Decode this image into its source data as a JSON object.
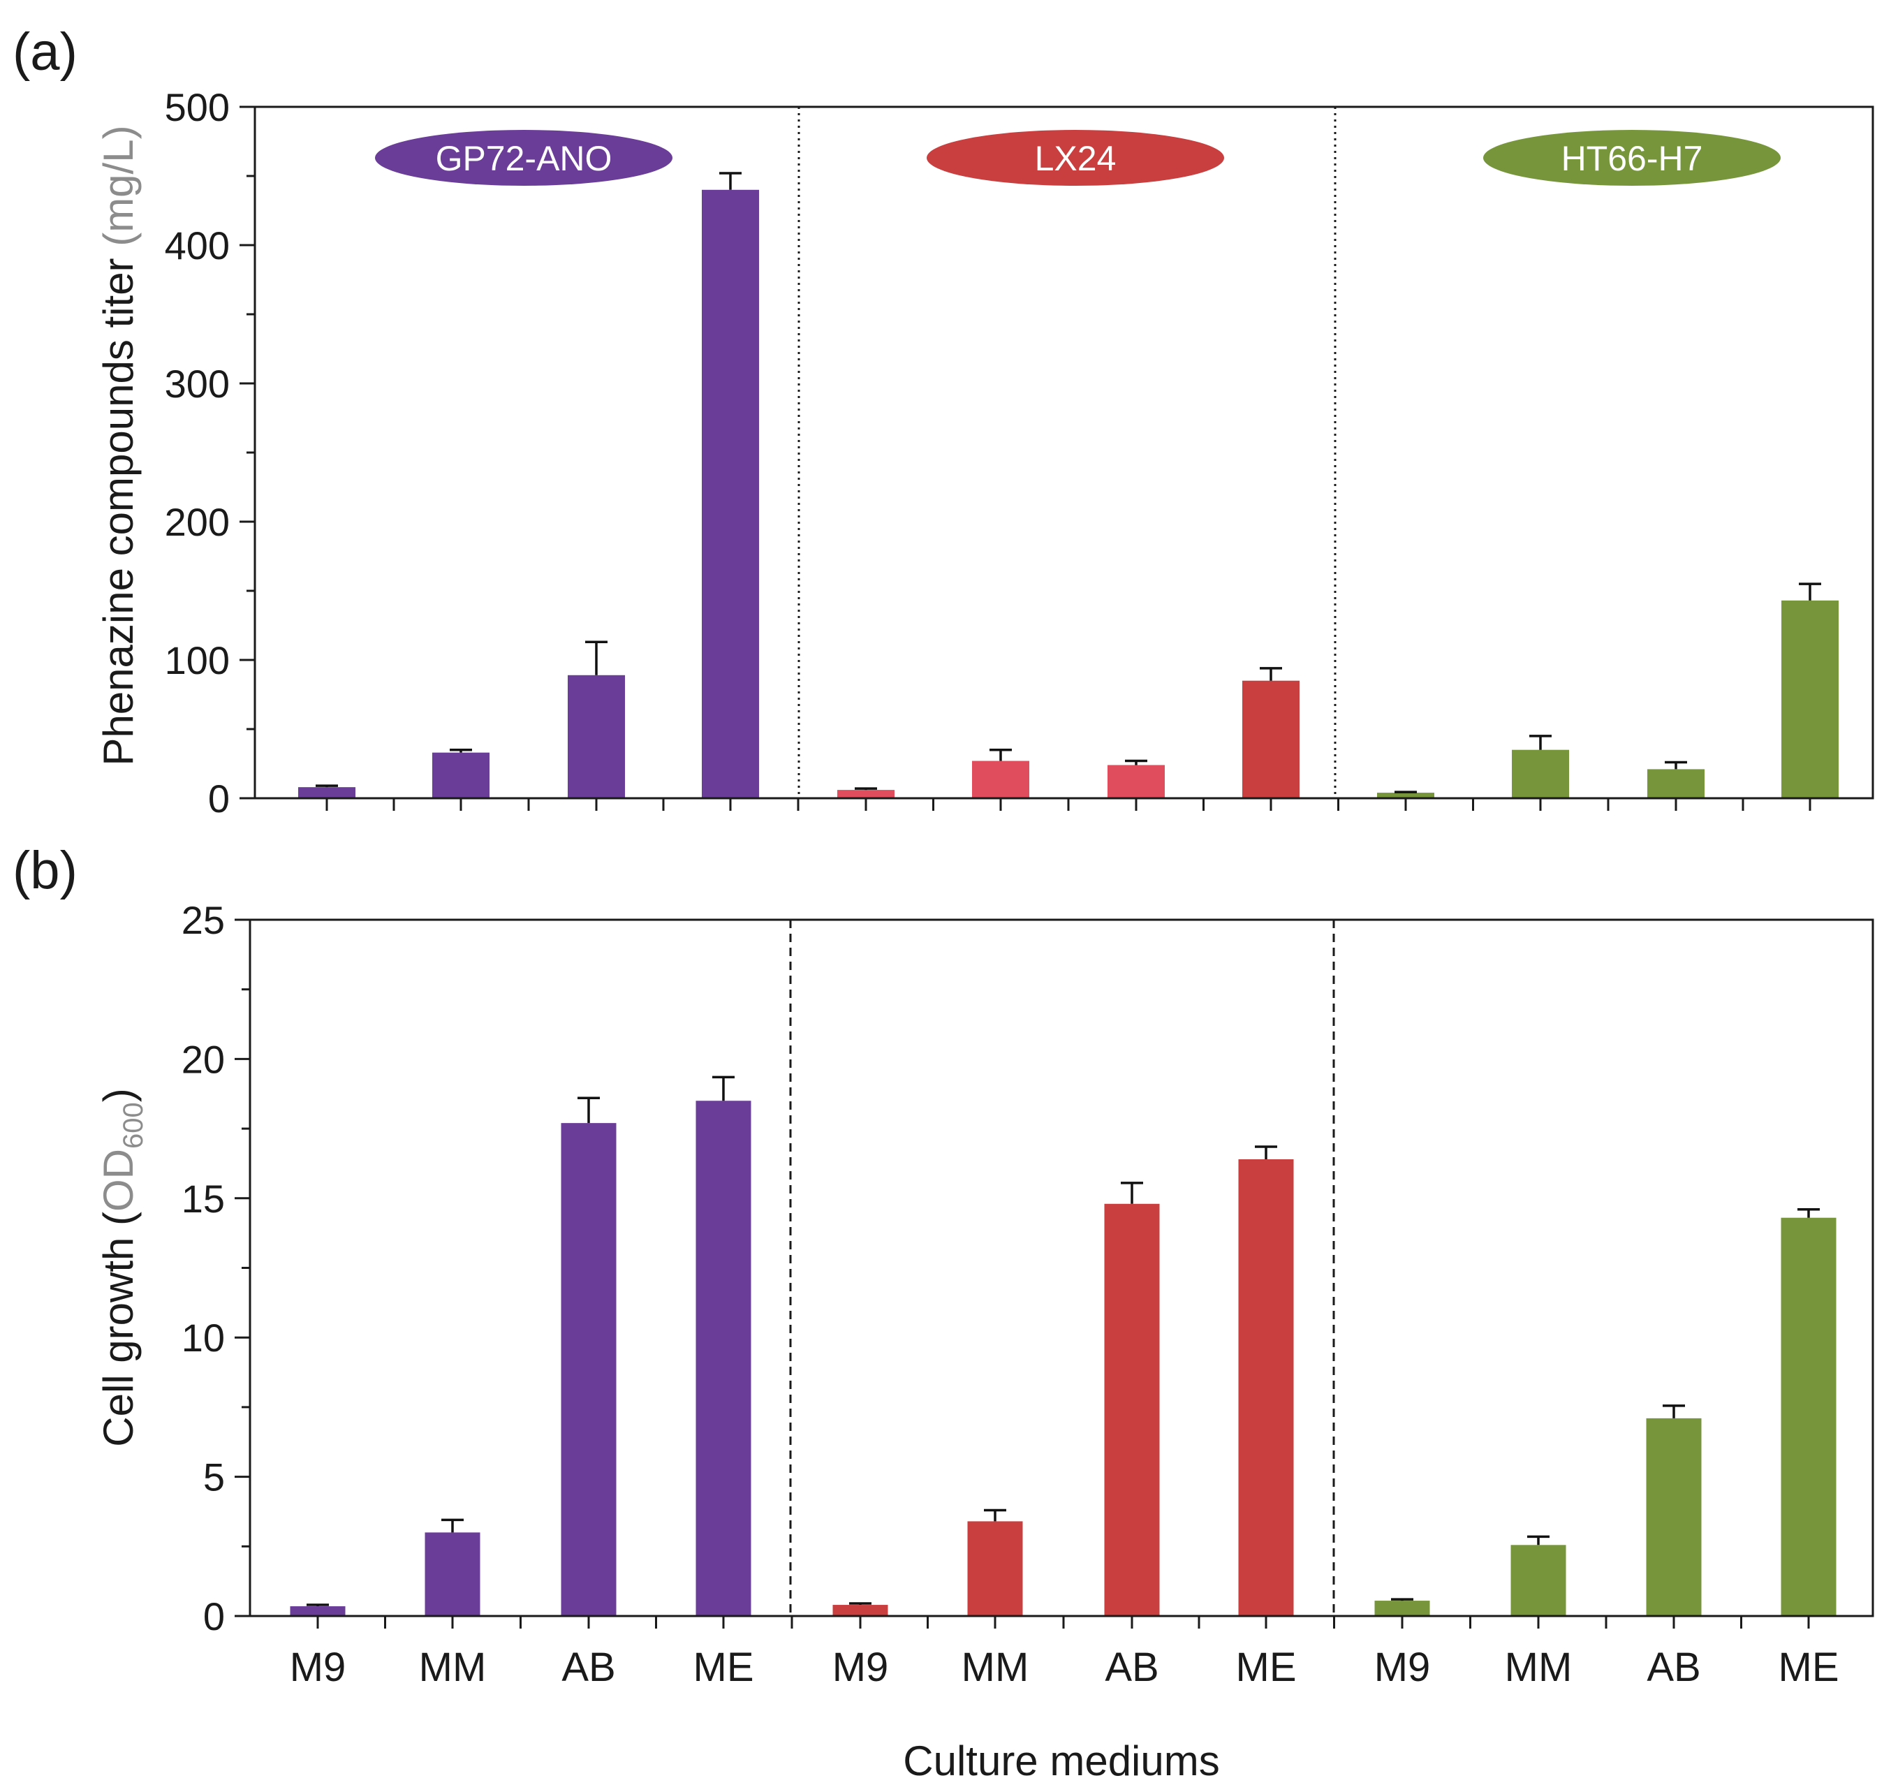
{
  "panels": {
    "a": {
      "letter": "(a)"
    },
    "b": {
      "letter": "(b)"
    }
  },
  "colors": {
    "GP72-ANO": "#6a3d98",
    "LX24": "#c93e3e",
    "LX24_light": "#e04d5c",
    "HT66-H7": "#77963c"
  },
  "chart_data": [
    {
      "id": "a",
      "type": "bar",
      "ylabel_main": "Phenazine compounds titer ",
      "ylabel_unit": "(mg/L)",
      "ylim": [
        0,
        500
      ],
      "yticks": [
        0,
        100,
        200,
        300,
        400,
        500
      ],
      "groups": [
        {
          "name": "GP72-ANO",
          "categories": [
            "M9",
            "MM",
            "AB",
            "ME"
          ],
          "values": [
            8,
            33,
            89,
            440
          ],
          "errors": [
            1,
            2,
            24,
            12
          ],
          "colors": [
            "#6a3d98",
            "#6a3d98",
            "#6a3d98",
            "#6a3d98"
          ]
        },
        {
          "name": "LX24",
          "categories": [
            "M9",
            "MM",
            "AB",
            "ME"
          ],
          "values": [
            6,
            27,
            24,
            85
          ],
          "errors": [
            1,
            8,
            3,
            9
          ],
          "colors": [
            "#e04d5c",
            "#e04d5c",
            "#e04d5c",
            "#c93e3e"
          ]
        },
        {
          "name": "HT66-H7",
          "categories": [
            "M9",
            "MM",
            "AB",
            "ME"
          ],
          "values": [
            4,
            35,
            21,
            143
          ],
          "errors": [
            0.5,
            10,
            5,
            12
          ],
          "colors": [
            "#77963c",
            "#77963c",
            "#77963c",
            "#77963c"
          ]
        }
      ]
    },
    {
      "id": "b",
      "type": "bar",
      "ylabel_main": "Cell growth (",
      "ylabel_unit": "OD",
      "ylabel_sub": "600",
      "ylabel_close": ")",
      "xlabel": "Culture mediums",
      "ylim": [
        0,
        25
      ],
      "yticks": [
        0,
        5,
        10,
        15,
        20,
        25
      ],
      "groups": [
        {
          "name": "GP72-ANO",
          "categories": [
            "M9",
            "MM",
            "AB",
            "ME"
          ],
          "values": [
            0.35,
            3.0,
            17.7,
            18.5
          ],
          "errors": [
            0.05,
            0.45,
            0.9,
            0.85
          ],
          "colors": [
            "#6a3d98",
            "#6a3d98",
            "#6a3d98",
            "#6a3d98"
          ]
        },
        {
          "name": "LX24",
          "categories": [
            "M9",
            "MM",
            "AB",
            "ME"
          ],
          "values": [
            0.4,
            3.4,
            14.8,
            16.4
          ],
          "errors": [
            0.05,
            0.4,
            0.75,
            0.45
          ],
          "colors": [
            "#c93e3e",
            "#c93e3e",
            "#c93e3e",
            "#c93e3e"
          ]
        },
        {
          "name": "HT66-H7",
          "categories": [
            "M9",
            "MM",
            "AB",
            "ME"
          ],
          "values": [
            0.55,
            2.55,
            7.1,
            14.3
          ],
          "errors": [
            0.05,
            0.3,
            0.45,
            0.3
          ],
          "colors": [
            "#77963c",
            "#77963c",
            "#77963c",
            "#77963c"
          ]
        }
      ]
    }
  ]
}
